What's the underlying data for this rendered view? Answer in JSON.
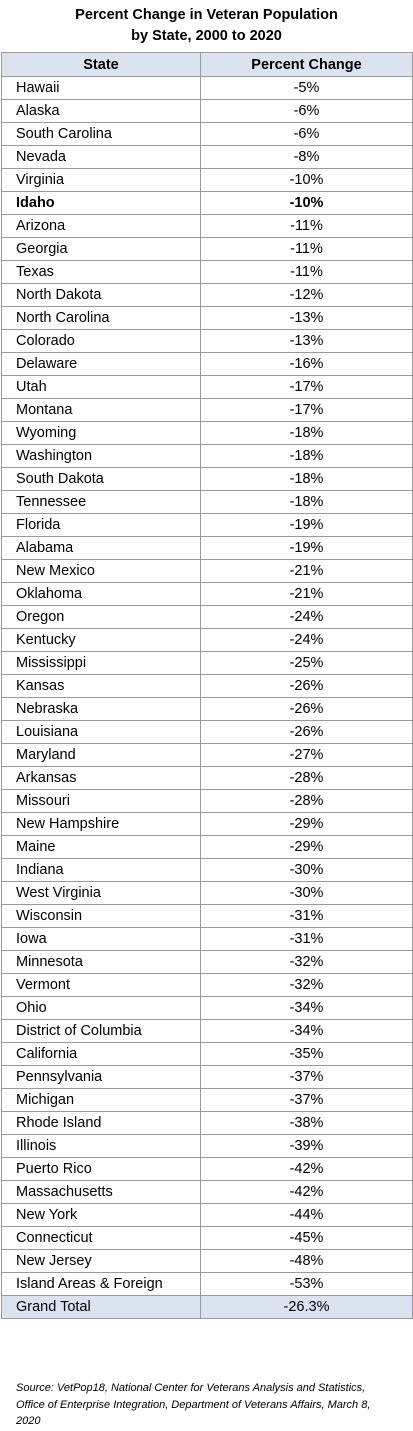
{
  "title": {
    "line1": "Percent Change in Veteran Population",
    "line2": "by State, 2000 to 2020"
  },
  "headers": {
    "state": "State",
    "change": "Percent Change"
  },
  "rows": [
    {
      "state": "Hawaii",
      "change": "-5%"
    },
    {
      "state": "Alaska",
      "change": "-6%"
    },
    {
      "state": "South Carolina",
      "change": "-6%"
    },
    {
      "state": "Nevada",
      "change": "-8%"
    },
    {
      "state": "Virginia",
      "change": "-10%"
    },
    {
      "state": "Idaho",
      "change": "-10%",
      "bold": true
    },
    {
      "state": "Arizona",
      "change": "-11%"
    },
    {
      "state": "Georgia",
      "change": "-11%"
    },
    {
      "state": "Texas",
      "change": "-11%"
    },
    {
      "state": "North Dakota",
      "change": "-12%"
    },
    {
      "state": "North Carolina",
      "change": "-13%"
    },
    {
      "state": "Colorado",
      "change": "-13%"
    },
    {
      "state": "Delaware",
      "change": "-16%"
    },
    {
      "state": "Utah",
      "change": "-17%"
    },
    {
      "state": "Montana",
      "change": "-17%"
    },
    {
      "state": "Wyoming",
      "change": "-18%"
    },
    {
      "state": "Washington",
      "change": "-18%"
    },
    {
      "state": "South Dakota",
      "change": "-18%"
    },
    {
      "state": "Tennessee",
      "change": "-18%"
    },
    {
      "state": "Florida",
      "change": "-19%"
    },
    {
      "state": "Alabama",
      "change": "-19%"
    },
    {
      "state": "New Mexico",
      "change": "-21%"
    },
    {
      "state": "Oklahoma",
      "change": "-21%"
    },
    {
      "state": "Oregon",
      "change": "-24%"
    },
    {
      "state": "Kentucky",
      "change": "-24%"
    },
    {
      "state": "Mississippi",
      "change": "-25%"
    },
    {
      "state": "Kansas",
      "change": "-26%"
    },
    {
      "state": "Nebraska",
      "change": "-26%"
    },
    {
      "state": "Louisiana",
      "change": "-26%"
    },
    {
      "state": "Maryland",
      "change": "-27%"
    },
    {
      "state": "Arkansas",
      "change": "-28%"
    },
    {
      "state": "Missouri",
      "change": "-28%"
    },
    {
      "state": "New Hampshire",
      "change": "-29%"
    },
    {
      "state": "Maine",
      "change": "-29%"
    },
    {
      "state": "Indiana",
      "change": "-30%"
    },
    {
      "state": "West Virginia",
      "change": "-30%"
    },
    {
      "state": "Wisconsin",
      "change": "-31%"
    },
    {
      "state": "Iowa",
      "change": "-31%"
    },
    {
      "state": "Minnesota",
      "change": "-32%"
    },
    {
      "state": "Vermont",
      "change": "-32%"
    },
    {
      "state": "Ohio",
      "change": "-34%"
    },
    {
      "state": "District of Columbia",
      "change": "-34%"
    },
    {
      "state": "California",
      "change": "-35%"
    },
    {
      "state": "Pennsylvania",
      "change": "-37%"
    },
    {
      "state": "Michigan",
      "change": "-37%"
    },
    {
      "state": "Rhode Island",
      "change": "-38%"
    },
    {
      "state": "Illinois",
      "change": "-39%"
    },
    {
      "state": "Puerto Rico",
      "change": "-42%"
    },
    {
      "state": "Massachusetts",
      "change": "-42%"
    },
    {
      "state": "New York",
      "change": "-44%"
    },
    {
      "state": "Connecticut",
      "change": "-45%"
    },
    {
      "state": "New Jersey",
      "change": "-48%"
    },
    {
      "state": "Island Areas & Foreign",
      "change": "-53%"
    }
  ],
  "total": {
    "label": "Grand Total",
    "change": "-26.3%"
  },
  "source": {
    "line1": "Source: VetPop18, National Center for Veterans Analysis and Statistics,",
    "line2": "Office of Enterprise Integration, Department of Veterans Affairs, March 8,",
    "line3": "2020"
  },
  "colors": {
    "header_fill": "#dbe3f1",
    "grid": "#9a9a9a"
  }
}
